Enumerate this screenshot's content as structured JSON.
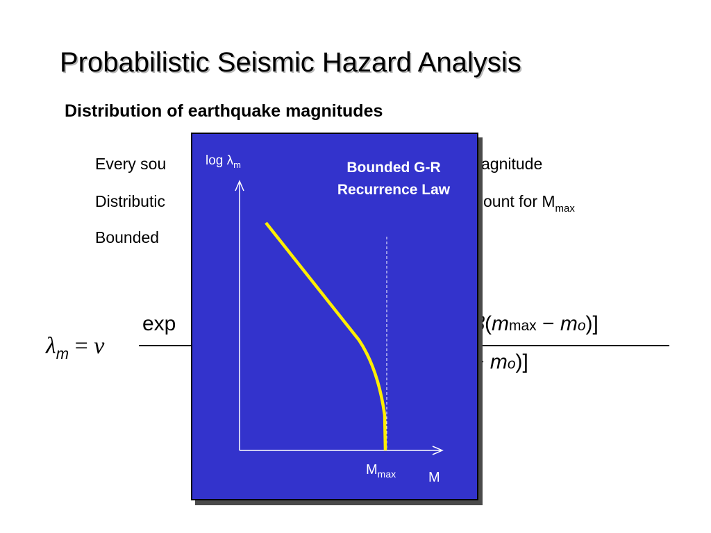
{
  "slide": {
    "title": "Probabilistic Seismic Hazard Analysis",
    "subtitle": "Distribution of earthquake magnitudes",
    "bullets": [
      {
        "text": "Every sou",
        "tail": "agnitude"
      },
      {
        "text": "Distributic",
        "tail": "ount for M",
        "tail_sub": "max"
      },
      {
        "text": "Bounded"
      }
    ]
  },
  "formula": {
    "lhs_symbol": "λ",
    "lhs_sub": "m",
    "equals": "=",
    "nu": "ν",
    "num_left": "exp",
    "num_right_beta": "β",
    "num_right_open": "(",
    "num_right_m1": "m",
    "num_right_m1_sub": "max",
    "num_right_minus": " − ",
    "num_right_m2": "m",
    "num_right_m2_sub": "o",
    "num_right_close": ")]",
    "den_right_minus": "− ",
    "den_right_m": "m",
    "den_right_m_sub": "o",
    "den_right_close": ")]"
  },
  "panel": {
    "ylabel": "log λ",
    "ylabel_sub": "m",
    "legend_line1": "Bounded G-R",
    "legend_line2": "Recurrence Law",
    "mmax_label": "M",
    "mmax_sub": "max",
    "x_label": "M",
    "colors": {
      "background": "#3333cc",
      "curve": "#ffee00",
      "axes": "#ffffff"
    }
  }
}
